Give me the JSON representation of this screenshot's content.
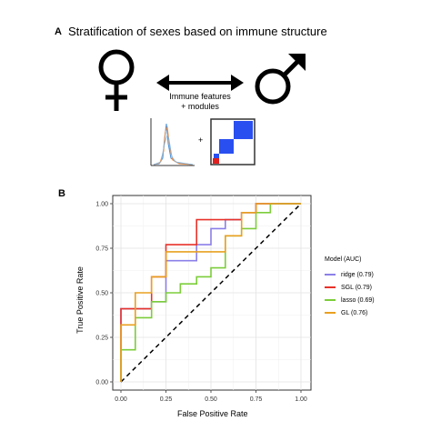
{
  "panel_a": {
    "letter": "A",
    "title": "Stratification of sexes based on immune structure",
    "arrow_label_line1": "Immune features",
    "arrow_label_line2": "+ modules",
    "plus": "+"
  },
  "panel_b": {
    "letter": "B"
  },
  "colors": {
    "ridge": "#8b7fe8",
    "SGL": "#e8322a",
    "lasso": "#7ccd3a",
    "GL": "#e8a020",
    "matrix_blue": "#2a4ff0",
    "matrix_red": "#e02020"
  },
  "chart_data": {
    "type": "line",
    "title": "",
    "xlabel": "False Positive Rate",
    "ylabel": "True Positive Rate",
    "xlim": [
      0,
      1
    ],
    "ylim": [
      0,
      1
    ],
    "x_ticks": [
      "0.00",
      "0.25",
      "0.50",
      "0.75",
      "1.00"
    ],
    "y_ticks": [
      "0.00",
      "0.25",
      "0.50",
      "0.75",
      "1.00"
    ],
    "grid": true,
    "legend_title": "Model (AUC)",
    "legend_position": "right",
    "diagonal_reference": true,
    "series": [
      {
        "name": "ridge (0.79)",
        "key": "ridge",
        "x": [
          0,
          0,
          0.08,
          0.08,
          0.17,
          0.17,
          0.25,
          0.25,
          0.33,
          0.33,
          0.42,
          0.42,
          0.5,
          0.5,
          0.58,
          0.58,
          0.67,
          0.67,
          0.75,
          0.75,
          1.0
        ],
        "y": [
          0,
          0.41,
          0.41,
          0.41,
          0.41,
          0.45,
          0.45,
          0.68,
          0.68,
          0.68,
          0.68,
          0.77,
          0.77,
          0.86,
          0.86,
          0.91,
          0.91,
          0.95,
          0.95,
          1.0,
          1.0
        ]
      },
      {
        "name": "SGL (0.79)",
        "key": "SGL",
        "x": [
          0,
          0,
          0.08,
          0.08,
          0.17,
          0.17,
          0.25,
          0.25,
          0.42,
          0.42,
          0.5,
          0.5,
          0.58,
          0.58,
          0.67,
          0.67,
          0.75,
          0.75,
          1.0
        ],
        "y": [
          0,
          0.41,
          0.41,
          0.41,
          0.41,
          0.59,
          0.59,
          0.77,
          0.77,
          0.91,
          0.91,
          0.91,
          0.91,
          0.91,
          0.91,
          0.95,
          0.95,
          1.0,
          1.0
        ]
      },
      {
        "name": "lasso (0.69)",
        "key": "lasso",
        "x": [
          0,
          0,
          0.08,
          0.08,
          0.17,
          0.17,
          0.25,
          0.25,
          0.33,
          0.33,
          0.42,
          0.42,
          0.5,
          0.5,
          0.58,
          0.58,
          0.67,
          0.67,
          0.75,
          0.75,
          0.83,
          0.83,
          1.0
        ],
        "y": [
          0,
          0.18,
          0.18,
          0.36,
          0.36,
          0.45,
          0.45,
          0.5,
          0.5,
          0.55,
          0.55,
          0.59,
          0.59,
          0.64,
          0.64,
          0.82,
          0.82,
          0.86,
          0.86,
          0.95,
          0.95,
          1.0,
          1.0
        ]
      },
      {
        "name": "GL (0.76)",
        "key": "GL",
        "x": [
          0,
          0,
          0.08,
          0.08,
          0.17,
          0.17,
          0.25,
          0.25,
          0.42,
          0.42,
          0.58,
          0.58,
          0.67,
          0.67,
          0.75,
          0.75,
          1.0
        ],
        "y": [
          0,
          0.32,
          0.32,
          0.5,
          0.5,
          0.59,
          0.59,
          0.73,
          0.73,
          0.73,
          0.73,
          0.82,
          0.82,
          0.95,
          0.95,
          1.0,
          1.0
        ]
      }
    ]
  }
}
